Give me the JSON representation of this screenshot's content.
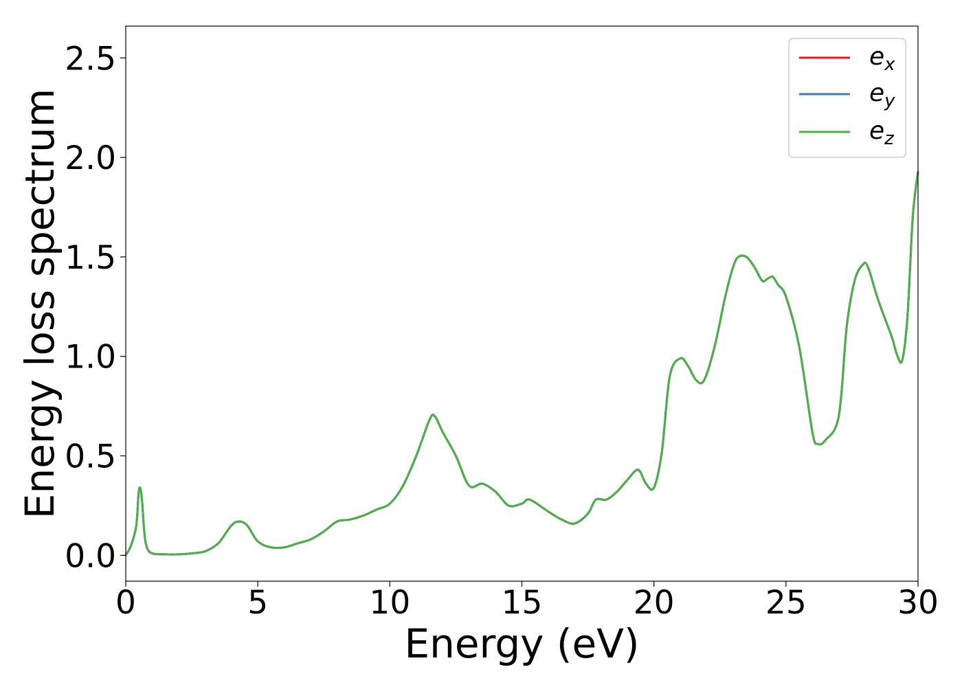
{
  "chart_data": {
    "type": "line",
    "title": "",
    "xlabel": "Energy (eV)",
    "ylabel": "Energy loss spectrum",
    "xlim": [
      0,
      30
    ],
    "ylim": [
      -0.13,
      2.66
    ],
    "xticks": [
      0,
      5,
      10,
      15,
      20,
      25,
      30
    ],
    "xtick_labels": [
      "0",
      "5",
      "10",
      "15",
      "20",
      "25",
      "30"
    ],
    "yticks": [
      0.0,
      0.5,
      1.0,
      1.5,
      2.0,
      2.5
    ],
    "ytick_labels": [
      "0.0",
      "0.5",
      "1.0",
      "1.5",
      "2.0",
      "2.5"
    ],
    "grid": false,
    "legend_position": "top-right",
    "x": [
      0,
      0.2,
      0.4,
      0.5,
      0.6,
      0.7,
      0.8,
      1.0,
      1.5,
      2.0,
      2.5,
      3.0,
      3.5,
      4.0,
      4.3,
      4.6,
      5.0,
      5.5,
      6.0,
      6.5,
      7.0,
      7.5,
      8.0,
      8.5,
      9.0,
      9.5,
      10.0,
      10.5,
      11.0,
      11.5,
      11.7,
      12.0,
      12.5,
      13.0,
      13.5,
      14.0,
      14.5,
      15.0,
      15.3,
      16.0,
      16.5,
      17.0,
      17.5,
      17.8,
      18.2,
      18.6,
      19.0,
      19.4,
      19.7,
      20.0,
      20.3,
      20.6,
      21.0,
      21.3,
      21.6,
      21.9,
      22.3,
      22.7,
      23.0,
      23.2,
      23.5,
      23.8,
      24.1,
      24.3,
      24.5,
      24.7,
      25.0,
      25.5,
      26.0,
      26.2,
      26.5,
      27.0,
      27.3,
      27.6,
      27.9,
      28.1,
      28.5,
      29.0,
      29.2,
      29.4,
      29.6,
      29.8,
      30.0
    ],
    "series": [
      {
        "name": "e_x",
        "color": "#e41a1c",
        "values": [
          0.0,
          0.05,
          0.15,
          0.33,
          0.3,
          0.12,
          0.04,
          0.01,
          0.005,
          0.005,
          0.01,
          0.02,
          0.06,
          0.15,
          0.17,
          0.15,
          0.07,
          0.04,
          0.04,
          0.06,
          0.08,
          0.12,
          0.17,
          0.18,
          0.2,
          0.23,
          0.26,
          0.35,
          0.5,
          0.68,
          0.7,
          0.62,
          0.5,
          0.35,
          0.36,
          0.32,
          0.25,
          0.26,
          0.28,
          0.22,
          0.18,
          0.16,
          0.21,
          0.28,
          0.28,
          0.32,
          0.38,
          0.43,
          0.36,
          0.34,
          0.52,
          0.9,
          0.99,
          0.95,
          0.88,
          0.88,
          1.05,
          1.3,
          1.45,
          1.5,
          1.5,
          1.45,
          1.38,
          1.39,
          1.4,
          1.36,
          1.3,
          1.05,
          0.62,
          0.56,
          0.58,
          0.7,
          1.15,
          1.38,
          1.46,
          1.45,
          1.28,
          1.1,
          1.01,
          0.98,
          1.2,
          1.7,
          1.93
        ]
      },
      {
        "name": "e_y",
        "color": "#377eb8",
        "values": [
          0.0,
          0.05,
          0.15,
          0.33,
          0.3,
          0.12,
          0.04,
          0.01,
          0.005,
          0.005,
          0.01,
          0.02,
          0.06,
          0.15,
          0.17,
          0.15,
          0.07,
          0.04,
          0.04,
          0.06,
          0.08,
          0.12,
          0.17,
          0.18,
          0.2,
          0.23,
          0.26,
          0.35,
          0.5,
          0.68,
          0.7,
          0.62,
          0.5,
          0.35,
          0.36,
          0.32,
          0.25,
          0.26,
          0.28,
          0.22,
          0.18,
          0.16,
          0.21,
          0.28,
          0.28,
          0.32,
          0.38,
          0.43,
          0.36,
          0.34,
          0.52,
          0.9,
          0.99,
          0.95,
          0.88,
          0.88,
          1.05,
          1.3,
          1.45,
          1.5,
          1.5,
          1.45,
          1.38,
          1.39,
          1.4,
          1.36,
          1.3,
          1.05,
          0.62,
          0.56,
          0.58,
          0.7,
          1.15,
          1.38,
          1.46,
          1.45,
          1.28,
          1.1,
          1.01,
          0.98,
          1.2,
          1.7,
          1.93
        ]
      },
      {
        "name": "e_z",
        "color": "#4daf4a",
        "values": [
          0.0,
          0.05,
          0.15,
          0.33,
          0.3,
          0.12,
          0.04,
          0.01,
          0.005,
          0.005,
          0.01,
          0.02,
          0.06,
          0.15,
          0.17,
          0.15,
          0.07,
          0.04,
          0.04,
          0.06,
          0.08,
          0.12,
          0.17,
          0.18,
          0.2,
          0.23,
          0.26,
          0.35,
          0.5,
          0.68,
          0.7,
          0.62,
          0.5,
          0.35,
          0.36,
          0.32,
          0.25,
          0.26,
          0.28,
          0.22,
          0.18,
          0.16,
          0.21,
          0.28,
          0.28,
          0.32,
          0.38,
          0.43,
          0.36,
          0.34,
          0.52,
          0.9,
          0.99,
          0.95,
          0.88,
          0.88,
          1.05,
          1.3,
          1.45,
          1.5,
          1.5,
          1.45,
          1.38,
          1.39,
          1.4,
          1.36,
          1.3,
          1.05,
          0.62,
          0.56,
          0.58,
          0.7,
          1.15,
          1.38,
          1.46,
          1.45,
          1.28,
          1.1,
          1.01,
          0.98,
          1.2,
          1.7,
          1.93
        ]
      }
    ],
    "legend": [
      {
        "base": "e",
        "sub": "x",
        "color": "#e41a1c"
      },
      {
        "base": "e",
        "sub": "y",
        "color": "#377eb8"
      },
      {
        "base": "e",
        "sub": "z",
        "color": "#4daf4a"
      }
    ]
  }
}
